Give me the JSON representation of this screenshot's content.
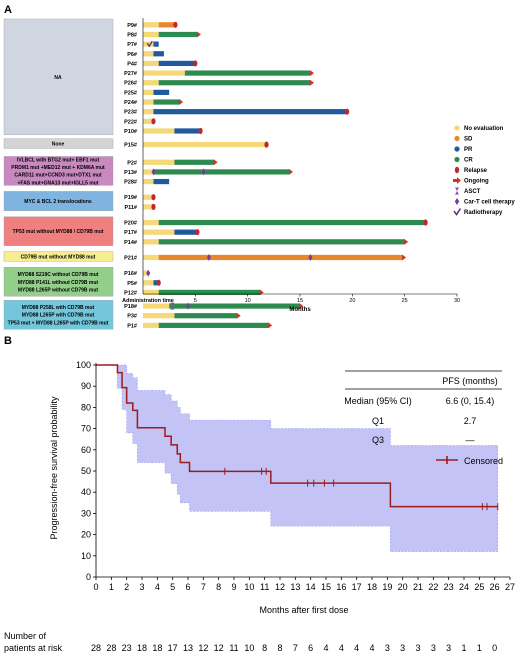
{
  "panel_a": {
    "label": "A",
    "patients": [
      "P9#",
      "P8#",
      "P7#",
      "P6#",
      "P4#",
      "P27#",
      "P26#",
      "P25#",
      "P24#",
      "P23#",
      "P22#",
      "P10#",
      "P15#",
      "P2#",
      "P13#",
      "P28#",
      "P19#",
      "P11#",
      "P20#",
      "P17#",
      "P14#",
      "P21#",
      "P16#",
      "P5#",
      "P12#",
      "P18#",
      "P3#",
      "P1#"
    ],
    "groups": [
      {
        "lines": [
          "NA"
        ],
        "color": "#cfd6e2"
      },
      {
        "lines": [
          "None"
        ],
        "color": "#d4d4d4"
      },
      {
        "lines": [
          "IVLBCL with BTG2 mut+ EBF1 mut",
          "PRDM1 mut +MED12 mut + KDM6A mut",
          "CARD11 mut+CCND3 mut+DTX1 mut",
          "+FAS mut+GNA13 mut+IGLL5 mut"
        ],
        "color": "#c889c0"
      },
      {
        "lines": [
          "MYC & BCL 2 translocations"
        ],
        "color": "#7fb4e0"
      },
      {
        "lines": [
          "TP53 mut without MYD88 / CD79B mut"
        ],
        "color": "#f08080"
      },
      {
        "lines": [
          "CD79B mut without MYD88 mut"
        ],
        "color": "#f7ee92"
      },
      {
        "lines": [
          "MYD88 S219C without CD79B mut",
          "MYD88 P141L without CD79B mut",
          "MYD88 L265P without CD79B mut"
        ],
        "color": "#93ce8a"
      },
      {
        "lines": [
          "MYD88 P258L with CD79B mut",
          "MYD88 L265P with CD79B mut",
          "TP53 mut + MYD88 L265P with CD79B mut"
        ],
        "color": "#74c6db"
      }
    ],
    "xlabel": "Months",
    "admin_label": "Administration time",
    "xticks": [
      5,
      10,
      15,
      20,
      25,
      30
    ],
    "xlim": [
      0,
      30
    ],
    "legend": [
      {
        "label": "No evaluation",
        "color": "#f5d878",
        "kind": "dot"
      },
      {
        "label": "SD",
        "color": "#e8862b",
        "kind": "dot"
      },
      {
        "label": "PR",
        "color": "#1f5a9c",
        "kind": "dot"
      },
      {
        "label": "CR",
        "color": "#2e8b4f",
        "kind": "dot"
      },
      {
        "label": "Relapse",
        "color": "#c0282d",
        "kind": "oval"
      },
      {
        "label": "Ongoing",
        "color": "#d2332a",
        "kind": "arrow"
      },
      {
        "label": "ASCT",
        "color": "#8b4fb0",
        "kind": "hourglass"
      },
      {
        "label": "Car-T cell therapy",
        "color": "#7a3b9c",
        "kind": "diamond"
      },
      {
        "label": "Radiotherapy",
        "color": "#5b2c82",
        "kind": "check"
      }
    ]
  },
  "panel_b": {
    "label": "B",
    "ylabel": "Progression-free survival probability",
    "xlabel": "Months after first dose",
    "pfs_table": {
      "header": "PFS (months)",
      "rows": [
        {
          "label": "Median (95% CI)",
          "value": "6.6 (0, 15.4)"
        },
        {
          "label": "Q1",
          "value": "2.7"
        },
        {
          "label": "Q3",
          "value": "—"
        }
      ]
    },
    "legend_label": "Censored",
    "risk_title_1": "Number of",
    "risk_title_2": "patients at risk",
    "risk_numbers": [
      "28",
      "28",
      "23",
      "18",
      "18",
      "17",
      "13",
      "12",
      "12",
      "11",
      "10",
      "8",
      "8",
      "7",
      "6",
      "4",
      "4",
      "4",
      "4",
      "3",
      "3",
      "3",
      "3",
      "3",
      "1",
      "1",
      "0"
    ]
  },
  "chart_data": [
    {
      "type": "bar",
      "title": "",
      "xlabel": "Months",
      "xlim": [
        0,
        30
      ],
      "categories": [
        "P9#",
        "P8#",
        "P7#",
        "P6#",
        "P4#",
        "P27#",
        "P26#",
        "P25#",
        "P24#",
        "P23#",
        "P22#",
        "P10#",
        "P15#",
        "P2#",
        "P13#",
        "P28#",
        "P19#",
        "P11#",
        "P20#",
        "P17#",
        "P14#",
        "P21#",
        "P16#",
        "P5#",
        "P12#",
        "P18#",
        "P3#",
        "P1#"
      ],
      "swimmer_rows": [
        {
          "patient": "P9#",
          "segments": [
            [
              "NE",
              0,
              1.5
            ],
            [
              "SD",
              1.5,
              3.0
            ]
          ],
          "end": "relapse",
          "end_at": 3.1
        },
        {
          "patient": "P8#",
          "segments": [
            [
              "NE",
              0,
              1.5
            ],
            [
              "CR",
              1.5,
              5.2
            ]
          ],
          "end": "ongoing",
          "end_at": 5.2
        },
        {
          "patient": "P7#",
          "segments": [
            [
              "NE",
              0,
              1.0
            ],
            [
              "PR",
              1.0,
              1.5
            ]
          ],
          "end": "none",
          "end_at": 1.5,
          "markers": [
            [
              "radiotherapy",
              0.6
            ]
          ]
        },
        {
          "patient": "P6#",
          "segments": [
            [
              "NE",
              0,
              1.0
            ],
            [
              "PR",
              1.0,
              2.0
            ]
          ],
          "end": "none",
          "end_at": 2.0
        },
        {
          "patient": "P4#",
          "segments": [
            [
              "NE",
              0,
              1.5
            ],
            [
              "PR",
              1.5,
              5.0
            ]
          ],
          "end": "relapse",
          "end_at": 5.0
        },
        {
          "patient": "P27#",
          "segments": [
            [
              "NE",
              0,
              4.0
            ],
            [
              "CR",
              4.0,
              16.0
            ]
          ],
          "end": "ongoing",
          "end_at": 16.0
        },
        {
          "patient": "P26#",
          "segments": [
            [
              "NE",
              0,
              1.5
            ],
            [
              "CR",
              1.5,
              16.0
            ]
          ],
          "end": "ongoing",
          "end_at": 16.0
        },
        {
          "patient": "P25#",
          "segments": [
            [
              "NE",
              0,
              1.0
            ],
            [
              "PR",
              1.0,
              2.5
            ]
          ],
          "end": "none",
          "end_at": 2.5
        },
        {
          "patient": "P24#",
          "segments": [
            [
              "NE",
              0,
              1.0
            ],
            [
              "CR",
              1.0,
              3.5
            ]
          ],
          "end": "ongoing",
          "end_at": 3.5
        },
        {
          "patient": "P23#",
          "segments": [
            [
              "NE",
              0,
              1.0
            ],
            [
              "PR",
              1.0,
              19.5
            ]
          ],
          "end": "relapse",
          "end_at": 19.5
        },
        {
          "patient": "P22#",
          "segments": [
            [
              "NE",
              0,
              1.0
            ]
          ],
          "end": "relapse",
          "end_at": 1.0
        },
        {
          "patient": "P10#",
          "segments": [
            [
              "NE",
              0,
              3.0
            ],
            [
              "PR",
              3.0,
              5.5
            ]
          ],
          "end": "relapse",
          "end_at": 5.5
        },
        {
          "patient": "P15#",
          "segments": [
            [
              "NE",
              0,
              11.8
            ]
          ],
          "end": "relapse",
          "end_at": 11.8
        },
        {
          "patient": "P2#",
          "segments": [
            [
              "NE",
              0,
              3.0
            ],
            [
              "CR",
              3.0,
              6.8
            ]
          ],
          "end": "ongoing",
          "end_at": 6.8
        },
        {
          "patient": "P13#",
          "segments": [
            [
              "NE",
              0,
              1.0
            ],
            [
              "CR",
              1.0,
              14.0
            ]
          ],
          "end": "ongoing",
          "end_at": 14.0,
          "markers": [
            [
              "cart",
              1.0
            ],
            [
              "cart",
              5.8
            ]
          ]
        },
        {
          "patient": "P28#",
          "segments": [
            [
              "NE",
              0,
              1.0
            ],
            [
              "PR",
              1.0,
              2.5
            ]
          ],
          "end": "none",
          "end_at": 2.5
        },
        {
          "patient": "P19#",
          "segments": [
            [
              "NE",
              0,
              1.0
            ]
          ],
          "end": "relapse",
          "end_at": 1.0
        },
        {
          "patient": "P11#",
          "segments": [
            [
              "NE",
              0,
              1.0
            ]
          ],
          "end": "relapse",
          "end_at": 1.0
        },
        {
          "patient": "P20#",
          "segments": [
            [
              "NE",
              0,
              1.5
            ],
            [
              "CR",
              1.5,
              27.0
            ]
          ],
          "end": "relapse",
          "end_at": 27.0
        },
        {
          "patient": "P17#",
          "segments": [
            [
              "NE",
              0,
              3.0
            ],
            [
              "PR",
              3.0,
              5.2
            ]
          ],
          "end": "relapse",
          "end_at": 5.2
        },
        {
          "patient": "P14#",
          "segments": [
            [
              "NE",
              0,
              1.5
            ],
            [
              "CR",
              1.5,
              25.0
            ]
          ],
          "end": "ongoing",
          "end_at": 25.0
        },
        {
          "patient": "P21#",
          "segments": [
            [
              "NE",
              0,
              1.5
            ],
            [
              "SD",
              1.5,
              24.8
            ]
          ],
          "end": "ongoing",
          "end_at": 24.8,
          "markers": [
            [
              "cart",
              6.3
            ],
            [
              "cart",
              16.0
            ]
          ]
        },
        {
          "patient": "P16#",
          "segments": [
            [
              "NE",
              0,
              0.5
            ]
          ],
          "end": "none",
          "end_at": 0.5,
          "markers": [
            [
              "cart",
              0.5
            ]
          ]
        },
        {
          "patient": "P5#",
          "segments": [
            [
              "NE",
              0,
              1.0
            ],
            [
              "PR",
              1.0,
              1.5
            ]
          ],
          "end": "relapse",
          "end_at": 1.5
        },
        {
          "patient": "P12#",
          "segments": [
            [
              "NE",
              0,
              1.5
            ],
            [
              "CR",
              1.5,
              11.2
            ]
          ],
          "end": "ongoing",
          "end_at": 11.2
        },
        {
          "patient": "P18#",
          "segments": [
            [
              "NE",
              0,
              2.5
            ],
            [
              "CR",
              2.5,
              15.0
            ]
          ],
          "end": "ongoing",
          "end_at": 15.0,
          "markers": [
            [
              "asct",
              2.8
            ],
            [
              "cart",
              4.3
            ]
          ]
        },
        {
          "patient": "P3#",
          "segments": [
            [
              "NE",
              0,
              3.0
            ],
            [
              "CR",
              3.0,
              9.0
            ]
          ],
          "end": "ongoing",
          "end_at": 9.0
        },
        {
          "patient": "P1#",
          "segments": [
            [
              "NE",
              0,
              1.5
            ],
            [
              "CR",
              1.5,
              12.0
            ]
          ],
          "end": "ongoing",
          "end_at": 12.0
        }
      ]
    },
    {
      "type": "line",
      "title": "",
      "xlabel": "Months after first dose",
      "ylabel": "Progression-free survival probability",
      "xlim": [
        0,
        27
      ],
      "ylim": [
        0,
        100
      ],
      "xticks": [
        0,
        1,
        2,
        3,
        4,
        5,
        6,
        7,
        8,
        9,
        10,
        11,
        12,
        13,
        14,
        15,
        16,
        17,
        18,
        19,
        20,
        21,
        22,
        23,
        24,
        25,
        26,
        27
      ],
      "yticks": [
        0,
        10,
        20,
        30,
        40,
        50,
        60,
        70,
        80,
        90,
        100
      ],
      "series": [
        {
          "name": "Censored",
          "step_x": [
            0,
            1.4,
            1.7,
            2.0,
            2.4,
            2.7,
            4.5,
            4.9,
            5.3,
            5.5,
            6.1,
            6.6,
            11.4,
            19.2,
            26.2
          ],
          "step_y": [
            100,
            96.4,
            89.3,
            82.1,
            78.6,
            70.4,
            66.4,
            62.3,
            58.1,
            54.0,
            49.8,
            49.8,
            44.3,
            33.2,
            33.2
          ],
          "upper": [
            100,
            100,
            100,
            96.0,
            94.0,
            88.0,
            86.0,
            83.0,
            80.0,
            77.0,
            74.0,
            74.0,
            70.0,
            62.0,
            62.0
          ],
          "lower": [
            100,
            89.0,
            79.0,
            68.0,
            63.0,
            54.0,
            49.0,
            44.0,
            39.0,
            35.0,
            31.0,
            31.0,
            24.0,
            12.0,
            12.0
          ],
          "censor_x": [
            8.4,
            10.8,
            11.1,
            13.8,
            14.2,
            14.9,
            15.5,
            25.2,
            25.5,
            26.2
          ]
        }
      ]
    }
  ]
}
